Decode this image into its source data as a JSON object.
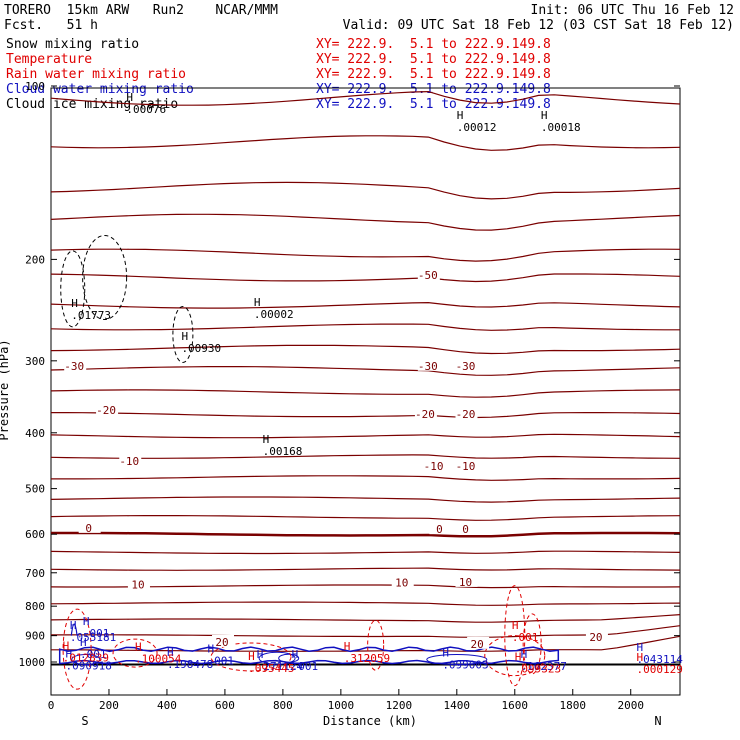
{
  "header": {
    "model": "TORERO  15km ARW   Run2    NCAR/MMM",
    "fcst": "Fcst.   51 h",
    "init": "Init: 06 UTC Thu 16 Feb 12",
    "valid": "Valid: 09 UTC Sat 18 Feb 12 (03 CST Sat 18 Feb 12)"
  },
  "legend": [
    {
      "label": "Snow mixing ratio",
      "xy": "",
      "color": "#000000"
    },
    {
      "label": "Temperature",
      "xy": "XY= 222.9.  5.1 to 222.9.149.8",
      "color": "#e00000"
    },
    {
      "label": "Rain water mixing ratio",
      "xy": "XY= 222.9.  5.1 to 222.9.149.8",
      "color": "#e00000"
    },
    {
      "label": "Cloud water mixing ratio",
      "xy": "XY= 222.9.  5.1 to 222.9.149.8",
      "color": "#1010c0"
    },
    {
      "label": "Cloud ice mixing ratio",
      "xy": "XY= 222.9.  5.1 to 222.9.149.8",
      "color": "#000000"
    }
  ],
  "snow_xy": "XY= 222.9.  5.1 to 222.9.149.8",
  "chart_data": {
    "type": "cross-section contour",
    "xlabel": "Distance (km)",
    "ylabel": "Pressure (hPa)",
    "xlim": [
      0,
      2170
    ],
    "ylim": [
      1015,
      100
    ],
    "y_scale": "log",
    "x_ticks": [
      0,
      200,
      400,
      600,
      800,
      1000,
      1200,
      1400,
      1600,
      1800,
      2000
    ],
    "y_ticks": [
      100,
      200,
      300,
      400,
      500,
      600,
      700,
      800,
      900,
      1000
    ],
    "end_labels": {
      "left": "S",
      "right": "N"
    },
    "temperature_labels": [
      {
        "text": "-50",
        "x": 1300,
        "p": 213
      },
      {
        "text": "-30",
        "x": 80,
        "p": 306
      },
      {
        "text": "-30",
        "x": 1300,
        "p": 306
      },
      {
        "text": "-30",
        "x": 1430,
        "p": 306
      },
      {
        "text": "-20",
        "x": 190,
        "p": 365
      },
      {
        "text": "-20",
        "x": 1290,
        "p": 371
      },
      {
        "text": "-20",
        "x": 1430,
        "p": 371
      },
      {
        "text": "-10",
        "x": 270,
        "p": 448
      },
      {
        "text": "-10",
        "x": 1320,
        "p": 457
      },
      {
        "text": "-10",
        "x": 1430,
        "p": 457
      },
      {
        "text": "0",
        "x": 130,
        "p": 585
      },
      {
        "text": "0",
        "x": 1340,
        "p": 588
      },
      {
        "text": "0",
        "x": 1430,
        "p": 588
      },
      {
        "text": "10",
        "x": 300,
        "p": 734
      },
      {
        "text": "10",
        "x": 1210,
        "p": 728
      },
      {
        "text": "10",
        "x": 1430,
        "p": 726
      },
      {
        "text": "20",
        "x": 590,
        "p": 923
      },
      {
        "text": "20",
        "x": 1470,
        "p": 930
      },
      {
        "text": "20",
        "x": 1880,
        "p": 904
      }
    ],
    "maxima": [
      {
        "text": ".01773",
        "x": 70,
        "p": 244,
        "color": "#000000"
      },
      {
        "text": ".00930",
        "x": 450,
        "p": 278,
        "color": "#000000"
      },
      {
        "text": ".00002",
        "x": 700,
        "p": 243,
        "color": "#000000"
      },
      {
        "text": ".00168",
        "x": 730,
        "p": 420,
        "color": "#000000"
      },
      {
        "text": ".00076",
        "x": 260,
        "p": 107,
        "color": "#000000"
      },
      {
        "text": ".00012",
        "x": 1400,
        "p": 115,
        "color": "#000000"
      },
      {
        "text": ".00018",
        "x": 1690,
        "p": 115,
        "color": "#000000"
      },
      {
        "text": ".055181",
        "x": 65,
        "p": 883,
        "color": "#1010c0"
      },
      {
        "text": ".001",
        "x": 110,
        "p": 870,
        "color": "#1010c0"
      },
      {
        "text": ".001",
        "x": 100,
        "p": 946,
        "color": "#1010c0"
      },
      {
        "text": ".090918",
        "x": 50,
        "p": 991,
        "color": "#1010c0"
      },
      {
        "text": ".198478",
        "x": 400,
        "p": 984,
        "color": "#1010c0"
      },
      {
        "text": ".001",
        "x": 540,
        "p": 970,
        "color": "#1010c0"
      },
      {
        "text": ".271124",
        "x": 710,
        "p": 992,
        "color": "#1010c0"
      },
      {
        "text": ".001",
        "x": 830,
        "p": 993,
        "color": "#1010c0"
      },
      {
        "text": ".099003",
        "x": 1350,
        "p": 987,
        "color": "#1010c0"
      },
      {
        "text": ".162377",
        "x": 1620,
        "p": 992,
        "color": "#1010c0"
      },
      {
        "text": ".043114",
        "x": 2020,
        "p": 965,
        "color": "#1010c0"
      },
      {
        "text": ".001",
        "x": 1590,
        "p": 883,
        "color": "#e00000"
      },
      {
        "text": ".012839",
        "x": 40,
        "p": 958,
        "color": "#e00000"
      },
      {
        "text": ".100054",
        "x": 290,
        "p": 962,
        "color": "#e00000"
      },
      {
        "text": ".312059",
        "x": 1010,
        "p": 961,
        "color": "#e00000"
      },
      {
        "text": ".095445",
        "x": 680,
        "p": 1000,
        "color": "#e00000"
      },
      {
        "text": ".099323",
        "x": 1600,
        "p": 1001,
        "color": "#e00000"
      },
      {
        "text": ".000129",
        "x": 2020,
        "p": 1005,
        "color": "#e00000"
      }
    ]
  },
  "colors": {
    "temperature": "#800000",
    "rain": "#e00000",
    "cloud_water": "#1010c0",
    "snow": "#000000",
    "axis": "#000000"
  }
}
